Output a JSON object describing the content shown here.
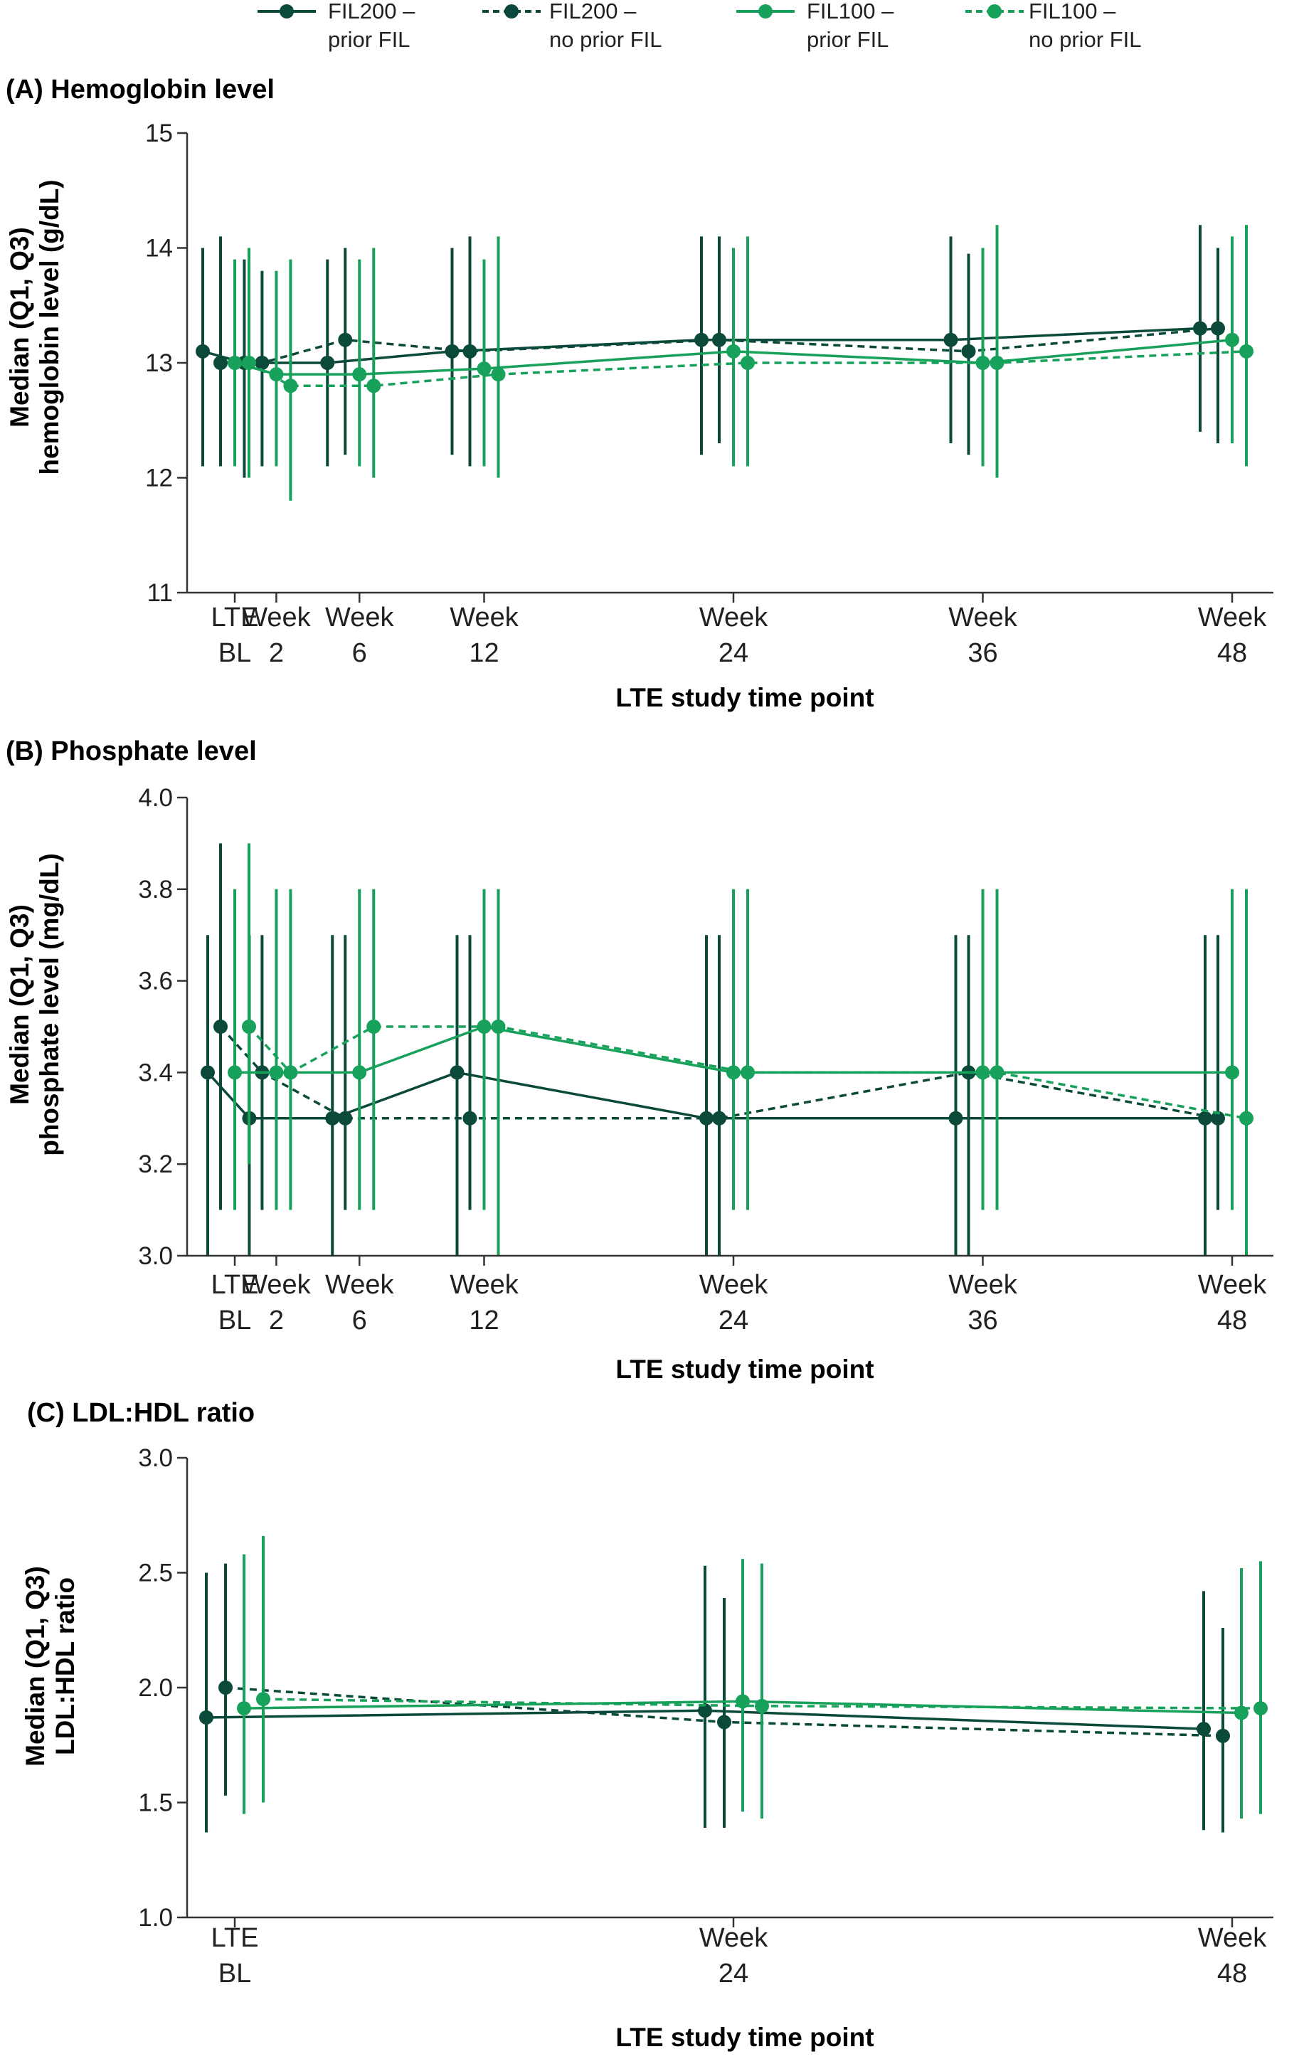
{
  "colors": {
    "dark": "#0b4a3a",
    "light": "#17a15a",
    "axis": "#333333"
  },
  "legend": [
    {
      "line1": "FIL200 –",
      "line2": "prior FIL",
      "color": "#0b4a3a",
      "dashed": false
    },
    {
      "line1": "FIL200 –",
      "line2": "no prior FIL",
      "color": "#0b4a3a",
      "dashed": true
    },
    {
      "line1": "FIL100 –",
      "line2": "prior FIL",
      "color": "#17a15a",
      "dashed": false
    },
    {
      "line1": "FIL100 –",
      "line2": "no prior FIL",
      "color": "#17a15a",
      "dashed": true
    }
  ],
  "chart_data": [
    {
      "type": "line",
      "title": "(A) Hemoglobin level",
      "ylabel_line1": "Median (Q1, Q3)",
      "ylabel_line2": "hemoglobin level (g/dL)",
      "xlabel": "LTE study time point",
      "ylim": [
        11,
        15
      ],
      "yticks": [
        "11",
        "12",
        "13",
        "14",
        "15"
      ],
      "x_weeks": [
        0,
        2,
        6,
        12,
        24,
        36,
        48
      ],
      "xtick_line1": [
        "LTE",
        "Week",
        "Week",
        "Week",
        "Week",
        "Week",
        "Week"
      ],
      "xtick_line2": [
        "BL",
        "2",
        "6",
        "12",
        "24",
        "36",
        "48"
      ],
      "series": [
        {
          "name": "FIL200 – prior FIL",
          "median": [
            13.1,
            13.0,
            13.0,
            13.1,
            13.2,
            13.2,
            13.3
          ],
          "q1": [
            12.1,
            12.0,
            12.1,
            12.2,
            12.2,
            12.3,
            12.4
          ],
          "q3": [
            14.0,
            13.9,
            13.9,
            14.0,
            14.1,
            14.1,
            14.2
          ]
        },
        {
          "name": "FIL200 – no prior FIL",
          "median": [
            13.0,
            13.0,
            13.2,
            13.1,
            13.2,
            13.1,
            13.3
          ],
          "q1": [
            12.1,
            12.1,
            12.2,
            12.1,
            12.3,
            12.2,
            12.3
          ],
          "q3": [
            14.1,
            13.8,
            14.0,
            14.1,
            14.1,
            13.95,
            14.0
          ]
        },
        {
          "name": "FIL100 – prior FIL",
          "median": [
            13.0,
            12.9,
            12.9,
            12.95,
            13.1,
            13.0,
            13.2
          ],
          "q1": [
            12.1,
            12.1,
            12.1,
            12.1,
            12.1,
            12.1,
            12.3
          ],
          "q3": [
            13.9,
            13.8,
            13.9,
            13.9,
            14.0,
            14.0,
            14.1
          ]
        },
        {
          "name": "FIL100 – no prior FIL",
          "median": [
            13.0,
            12.8,
            12.8,
            12.9,
            13.0,
            13.0,
            13.1
          ],
          "q1": [
            12.0,
            11.8,
            12.0,
            12.0,
            12.1,
            12.0,
            12.1
          ],
          "q3": [
            14.0,
            13.9,
            14.0,
            14.1,
            14.1,
            14.2,
            14.2
          ]
        }
      ]
    },
    {
      "type": "line",
      "title": "(B) Phosphate level",
      "ylabel_line1": "Median (Q1, Q3)",
      "ylabel_line2": "phosphate level (mg/dL)",
      "xlabel": "LTE study time point",
      "ylim": [
        3.0,
        4.0
      ],
      "yticks": [
        "3.0",
        "3.2",
        "3.4",
        "3.6",
        "3.8",
        "4.0"
      ],
      "x_weeks": [
        0,
        2,
        6,
        12,
        24,
        36,
        48
      ],
      "xtick_line1": [
        "LTE",
        "Week",
        "Week",
        "Week",
        "Week",
        "Week",
        "Week"
      ],
      "xtick_line2": [
        "BL",
        "2",
        "6",
        "12",
        "24",
        "36",
        "48"
      ],
      "series": [
        {
          "name": "FIL200 – prior FIL",
          "median": [
            3.4,
            3.3,
            3.3,
            3.4,
            3.3,
            3.3,
            3.3
          ],
          "q1": [
            3.0,
            3.0,
            3.0,
            3.0,
            3.0,
            3.0,
            3.0
          ],
          "q3": [
            3.7,
            3.7,
            3.7,
            3.7,
            3.7,
            3.7,
            3.7
          ]
        },
        {
          "name": "FIL200 – no prior FIL",
          "median": [
            3.5,
            3.4,
            3.3,
            3.3,
            3.3,
            3.4,
            3.3
          ],
          "q1": [
            3.1,
            3.1,
            3.1,
            3.1,
            3.0,
            3.0,
            3.1
          ],
          "q3": [
            3.9,
            3.7,
            3.7,
            3.7,
            3.7,
            3.7,
            3.7
          ]
        },
        {
          "name": "FIL100 – prior FIL",
          "median": [
            3.4,
            3.4,
            3.4,
            3.5,
            3.4,
            3.4,
            3.4
          ],
          "q1": [
            3.1,
            3.1,
            3.1,
            3.1,
            3.1,
            3.1,
            3.1
          ],
          "q3": [
            3.8,
            3.8,
            3.8,
            3.8,
            3.8,
            3.8,
            3.8
          ]
        },
        {
          "name": "FIL100 – no prior FIL",
          "median": [
            3.5,
            3.4,
            3.5,
            3.5,
            3.4,
            3.4,
            3.3
          ],
          "q1": [
            3.2,
            3.1,
            3.1,
            3.0,
            3.1,
            3.1,
            3.0
          ],
          "q3": [
            3.9,
            3.8,
            3.8,
            3.8,
            3.8,
            3.8,
            3.8
          ]
        }
      ]
    },
    {
      "type": "line",
      "title": "(C) LDL:HDL ratio",
      "ylabel_line1": "Median (Q1, Q3)",
      "ylabel_line2": "LDL:HDL ratio",
      "xlabel": "LTE study time point",
      "ylim": [
        1.0,
        3.0
      ],
      "yticks": [
        "1.0",
        "1.5",
        "2.0",
        "2.5",
        "3.0"
      ],
      "x_weeks": [
        0,
        24,
        48
      ],
      "xtick_line1": [
        "LTE",
        "Week",
        "Week"
      ],
      "xtick_line2": [
        "BL",
        "24",
        "48"
      ],
      "series": [
        {
          "name": "FIL200 – prior FIL",
          "median": [
            1.87,
            1.9,
            1.82
          ],
          "q1": [
            1.37,
            1.39,
            1.38
          ],
          "q3": [
            2.5,
            2.53,
            2.42
          ]
        },
        {
          "name": "FIL200 – no prior FIL",
          "median": [
            2.0,
            1.85,
            1.79
          ],
          "q1": [
            1.53,
            1.39,
            1.37
          ],
          "q3": [
            2.54,
            2.39,
            2.26
          ]
        },
        {
          "name": "FIL100 – prior FIL",
          "median": [
            1.91,
            1.94,
            1.89
          ],
          "q1": [
            1.45,
            1.46,
            1.43
          ],
          "q3": [
            2.58,
            2.56,
            2.52
          ]
        },
        {
          "name": "FIL100 – no prior FIL",
          "median": [
            1.95,
            1.92,
            1.91
          ],
          "q1": [
            1.5,
            1.43,
            1.45
          ],
          "q3": [
            2.66,
            2.54,
            2.55
          ]
        }
      ]
    }
  ]
}
